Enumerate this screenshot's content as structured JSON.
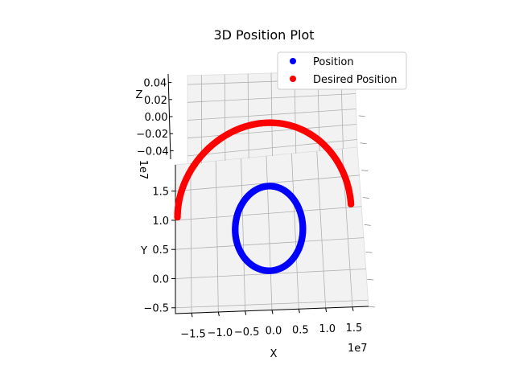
{
  "chart_data": {
    "type": "scatter",
    "projection": "3d",
    "title": "3D Position Plot",
    "xlabel": "X",
    "ylabel": "Y",
    "zlabel": "Z",
    "x_ticks": [
      "−1.5",
      "−1.0",
      "−0.5",
      "0.0",
      "0.5",
      "1.0",
      "1.5"
    ],
    "x_tick_values": [
      -1.5,
      -1.0,
      -0.5,
      0.0,
      0.5,
      1.0,
      1.5
    ],
    "x_offset_label": "1e7",
    "y_ticks": [
      "−0.5",
      "0.0",
      "0.5",
      "1.0",
      "1.5"
    ],
    "y_tick_values": [
      -0.5,
      0.0,
      0.5,
      1.0,
      1.5
    ],
    "y_offset_label": "1e7",
    "z_ticks": [
      "0.04",
      "0.02",
      "0.00",
      "−0.02",
      "−0.04"
    ],
    "z_tick_values": [
      0.04,
      0.02,
      0.0,
      -0.02,
      -0.04
    ],
    "xlim": [
      -1.8,
      1.8
    ],
    "ylim": [
      -0.6,
      1.95
    ],
    "grid": true,
    "legend_position": "top-right",
    "series": [
      {
        "name": "Position",
        "color": "#0000ff",
        "shape": "ellipse",
        "center_x": 0.0,
        "center_y": 0.75,
        "radius_x": 0.65,
        "radius_y": 0.7,
        "z": 0.0
      },
      {
        "name": "Desired Position",
        "color": "#ff0000",
        "shape": "arc",
        "center_x": -0.08,
        "center_y": 1.05,
        "radius_x": 1.68,
        "radius_y": 1.45,
        "angle_start_deg": 0,
        "angle_end_deg": 180,
        "z": 0.0
      }
    ]
  }
}
